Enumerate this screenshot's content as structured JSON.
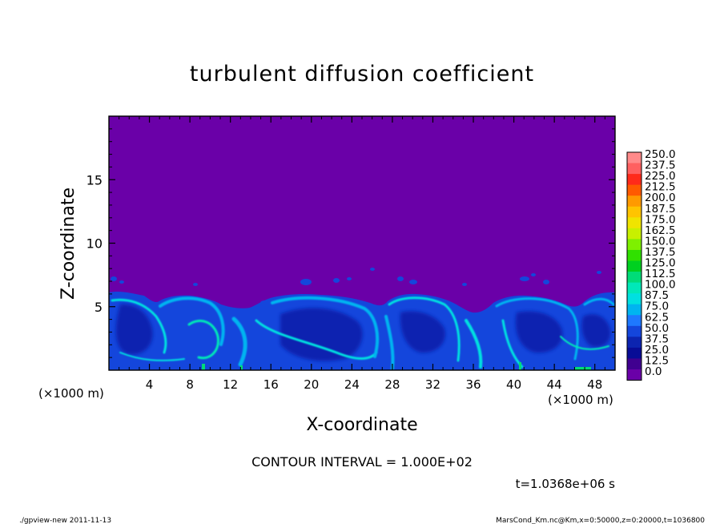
{
  "chart_data": {
    "type": "heatmap",
    "title": "turbulent diffusion coefficient",
    "xlabel": "X-coordinate",
    "ylabel": "Z-coordinate",
    "x_unit_label": "(×1000 m)",
    "x_unit_label_right": "(×1000 m)",
    "xlim": [
      0,
      50
    ],
    "ylim": [
      0,
      20
    ],
    "x_ticks": [
      4,
      8,
      12,
      16,
      20,
      24,
      28,
      32,
      36,
      40,
      44,
      48
    ],
    "y_ticks": [
      5,
      10,
      15
    ],
    "contour_interval_text": "CONTOUR INTERVAL = 1.000E+02",
    "time_text": "t=1.0368e+06 s",
    "colorbar_levels": [
      "250.0",
      "237.5",
      "225.0",
      "212.5",
      "200.0",
      "187.5",
      "175.0",
      "162.5",
      "150.0",
      "137.5",
      "125.0",
      "112.5",
      "100.0",
      "87.5",
      "75.0",
      "62.5",
      "50.0",
      "37.5",
      "25.0",
      "12.5",
      "0.0"
    ],
    "colorbar_colors": [
      "#ff8a8a",
      "#ff6060",
      "#ff2a1a",
      "#ff5a00",
      "#ff9a00",
      "#ffc400",
      "#f0e400",
      "#c8f000",
      "#7ef000",
      "#30e000",
      "#00d020",
      "#00dc78",
      "#00e8b8",
      "#00e0e0",
      "#00b4f0",
      "#1e78ff",
      "#1446dc",
      "#0c24b0",
      "#080c96",
      "#400090",
      "#6a00a8"
    ],
    "background_color": "#6a00a8",
    "grid": false,
    "legend_placement": "right",
    "field_summary": "Near-zero coefficient above about z = 6–7 km; turbulent cells of low-to-moderate values (mostly 12.5–75) fill the layer below, with small isolated patches up to about z = 9 km."
  },
  "footer": {
    "left": "./gpview-new   2011-11-13",
    "right": "MarsCond_Km.nc@Km,x=0:50000,z=0:20000,t=1036800"
  }
}
